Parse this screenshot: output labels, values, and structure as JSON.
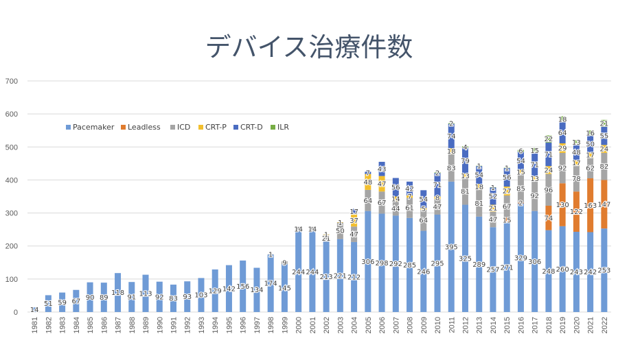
{
  "chart_data": {
    "type": "bar",
    "stacked": true,
    "title": "デバイス治療件数",
    "xlabel": "",
    "ylabel": "",
    "ylim": [
      0,
      700
    ],
    "yticks": [
      0,
      100,
      200,
      300,
      400,
      500,
      600,
      700
    ],
    "grid": true,
    "legend_position": "top-left",
    "categories": [
      "1981",
      "1982",
      "1983",
      "1984",
      "1985",
      "1986",
      "1987",
      "1988",
      "1989",
      "1990",
      "1991",
      "1992",
      "1993",
      "1994",
      "1995",
      "1996",
      "1997",
      "1998",
      "1999",
      "2000",
      "2001",
      "2002",
      "2003",
      "2004",
      "2005",
      "2006",
      "2007",
      "2008",
      "2009",
      "2010",
      "2011",
      "2012",
      "2013",
      "2014",
      "2015",
      "2016",
      "2017",
      "2018",
      "2019",
      "2020",
      "2021",
      "2022"
    ],
    "series": [
      {
        "name": "Pacemaker",
        "color": "#6f9bd6",
        "values": [
          14,
          51,
          59,
          67,
          90,
          89,
          118,
          91,
          113,
          92,
          83,
          93,
          103,
          129,
          142,
          156,
          134,
          174,
          145,
          244,
          244,
          213,
          221,
          212,
          306,
          298,
          292,
          285,
          246,
          295,
          395,
          325,
          289,
          257,
          271,
          329,
          306,
          248,
          260,
          243,
          242,
          253
        ]
      },
      {
        "name": "Leadless",
        "color": "#e07c2f",
        "values": [
          0,
          0,
          0,
          0,
          0,
          0,
          0,
          0,
          0,
          0,
          0,
          0,
          0,
          0,
          0,
          0,
          0,
          0,
          0,
          0,
          0,
          0,
          0,
          0,
          0,
          0,
          0,
          0,
          0,
          0,
          0,
          0,
          0,
          0,
          15,
          2,
          0,
          74,
          130,
          122,
          163,
          147
        ]
      },
      {
        "name": "ICD",
        "color": "#a5a5a5",
        "values": [
          0,
          0,
          0,
          0,
          0,
          0,
          0,
          0,
          0,
          0,
          0,
          0,
          0,
          0,
          0,
          0,
          0,
          1,
          9,
          14,
          14,
          21,
          50,
          47,
          64,
          67,
          44,
          61,
          64,
          47,
          83,
          81,
          81,
          47,
          67,
          85,
          92,
          96,
          92,
          78,
          62,
          82
        ]
      },
      {
        "name": "CRT-P",
        "color": "#f2bf2e",
        "values": [
          0,
          0,
          0,
          0,
          0,
          0,
          0,
          0,
          0,
          0,
          0,
          0,
          0,
          0,
          0,
          0,
          0,
          0,
          0,
          0,
          0,
          1,
          1,
          37,
          48,
          47,
          14,
          7,
          5,
          8,
          18,
          13,
          18,
          21,
          27,
          15,
          13,
          24,
          29,
          17,
          17,
          24
        ]
      },
      {
        "name": "CRT-D",
        "color": "#4a6cc1",
        "values": [
          0,
          0,
          0,
          0,
          0,
          0,
          0,
          0,
          0,
          0,
          0,
          0,
          0,
          0,
          0,
          0,
          0,
          0,
          0,
          0,
          0,
          0,
          0,
          17,
          7,
          43,
          56,
          42,
          54,
          71,
          74,
          79,
          54,
          52,
          56,
          54,
          71,
          71,
          64,
          48,
          50,
          55
        ]
      },
      {
        "name": "ILR",
        "color": "#77ad45",
        "values": [
          0,
          0,
          0,
          0,
          0,
          0,
          0,
          0,
          0,
          0,
          0,
          0,
          0,
          0,
          0,
          0,
          0,
          0,
          0,
          0,
          0,
          0,
          0,
          0,
          0,
          0,
          0,
          0,
          0,
          2,
          2,
          4,
          1,
          1,
          1,
          6,
          15,
          22,
          18,
          13,
          16,
          21
        ]
      }
    ]
  }
}
